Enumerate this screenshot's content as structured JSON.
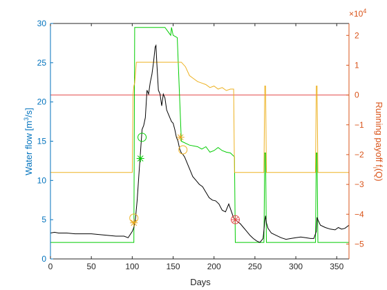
{
  "chart_data": {
    "type": "line",
    "xlabel": "Days",
    "ylabel_left": "Water flow [m³/s]",
    "ylabel_left_main": "Water flow [m",
    "ylabel_left_sup": "3",
    "ylabel_left_tail": "/s]",
    "ylabel_right": "Running payoff f_i(Q)",
    "ylabel_right_main": "Running payoff f",
    "ylabel_right_sub": "i",
    "ylabel_right_tail": "(Q)",
    "right_exponent_base": "×10",
    "right_exponent_power": "4",
    "xlim": [
      0,
      365
    ],
    "ylim_left": [
      0,
      30
    ],
    "ylim_right": [
      -5.5,
      2.4
    ],
    "x_ticks": [
      0,
      50,
      100,
      150,
      200,
      250,
      300,
      350
    ],
    "y_left_ticks": [
      0,
      5,
      10,
      15,
      20,
      25,
      30
    ],
    "y_right_ticks": [
      -5,
      -4,
      -3,
      -2,
      -1,
      0,
      1,
      2
    ],
    "grid": false,
    "colors": {
      "water_flow": "#000000",
      "payoff": "#edb120",
      "green": "#00cc00",
      "red_line": "#e24a4a",
      "left_axis": "#0072bd",
      "right_axis": "#d95319",
      "circle_marker": "#77ac30",
      "star_marker": "#e8a317"
    },
    "series": [
      {
        "axis": "left",
        "color": "#000000",
        "x": [
          0,
          5,
          10,
          20,
          30,
          40,
          50,
          60,
          70,
          80,
          90,
          95,
          100,
          102,
          104,
          106,
          108,
          110,
          112,
          114,
          116,
          118,
          120,
          122,
          124,
          126,
          128,
          129,
          130,
          132,
          134,
          136,
          138,
          140,
          142,
          144,
          146,
          148,
          150,
          152,
          154,
          156,
          158,
          160,
          162,
          164,
          166,
          168,
          170,
          174,
          178,
          182,
          186,
          190,
          194,
          198,
          202,
          206,
          210,
          214,
          218,
          222,
          224,
          226,
          228,
          232,
          236,
          240,
          244,
          248,
          252,
          256,
          260,
          262,
          263,
          264,
          266,
          270,
          276,
          282,
          288,
          294,
          300,
          306,
          312,
          318,
          322,
          325,
          326,
          327,
          330,
          336,
          342,
          348,
          352,
          356,
          360,
          365
        ],
        "values": [
          3.3,
          3.4,
          3.3,
          3.3,
          3.2,
          3.2,
          3.2,
          3.1,
          3.0,
          2.9,
          2.9,
          2.7,
          3.5,
          4.0,
          5.2,
          7.5,
          10.5,
          13.5,
          16.5,
          17.0,
          18.0,
          21.5,
          21.0,
          22.5,
          23.5,
          25.0,
          27.0,
          27.2,
          25.0,
          21.5,
          21.0,
          19.5,
          21.0,
          20.5,
          19.0,
          18.5,
          18.0,
          17.5,
          17.3,
          16.5,
          15.5,
          15.0,
          14.0,
          13.5,
          13.3,
          13.0,
          12.5,
          12.0,
          11.5,
          10.5,
          10.0,
          9.5,
          9.2,
          8.5,
          7.8,
          7.5,
          7.4,
          7.0,
          6.2,
          6.0,
          7.0,
          5.8,
          5.2,
          5.0,
          4.8,
          4.5,
          4.0,
          3.5,
          3.0,
          2.6,
          2.3,
          2.1,
          2.6,
          4.8,
          5.5,
          4.6,
          3.9,
          3.3,
          3.0,
          2.7,
          2.5,
          2.6,
          2.7,
          2.8,
          2.7,
          2.6,
          2.6,
          3.5,
          5.3,
          5.0,
          4.3,
          4.0,
          3.8,
          3.7,
          4.0,
          3.8,
          3.9,
          4.3
        ]
      },
      {
        "axis": "left",
        "color": "#00cc00",
        "x": [
          0,
          102,
          103,
          118,
          130,
          140,
          147,
          148,
          150,
          155,
          160,
          170,
          180,
          185,
          190,
          195,
          200,
          205,
          210,
          215,
          220,
          225,
          226,
          261,
          262,
          263,
          264,
          265,
          324,
          325,
          326,
          327,
          328,
          365
        ],
        "values": [
          2.1,
          2.1,
          29.5,
          29.5,
          29.5,
          29.5,
          28.5,
          29.5,
          28.5,
          28.2,
          15.0,
          14.5,
          14.3,
          14.0,
          14.3,
          13.6,
          13.8,
          14.2,
          13.8,
          13.6,
          13.5,
          13.0,
          2.1,
          2.1,
          13.5,
          13.5,
          2.1,
          2.1,
          2.1,
          13.5,
          13.5,
          2.1,
          2.1,
          2.1
        ]
      },
      {
        "axis": "right",
        "color": "#edb120",
        "x": [
          0,
          100,
          101,
          102,
          103,
          105,
          110,
          160,
          165,
          170,
          175,
          180,
          185,
          190,
          195,
          200,
          205,
          210,
          215,
          220,
          224,
          225,
          261,
          262,
          263,
          264,
          265,
          324,
          325,
          326,
          327,
          328,
          365
        ],
        "values": [
          -2.6,
          -2.6,
          0.0,
          0.3,
          0.4,
          1.1,
          1.1,
          1.1,
          0.95,
          0.65,
          0.55,
          0.45,
          0.4,
          0.35,
          0.25,
          0.3,
          0.2,
          0.25,
          0.15,
          0.2,
          0.2,
          -2.6,
          -2.6,
          0.3,
          0.3,
          -2.6,
          -2.6,
          -2.6,
          0.3,
          0.3,
          -2.6,
          -2.6,
          -2.6
        ]
      },
      {
        "axis": "right",
        "color": "#e24a4a",
        "x": [
          0,
          365
        ],
        "values": [
          0,
          0
        ]
      }
    ],
    "markers": [
      {
        "type": "circle",
        "x": 112,
        "y": 15.5,
        "color": "#00cc00"
      },
      {
        "type": "circle",
        "x": 102,
        "y": 5.2,
        "color": "#edb120"
      },
      {
        "type": "circle",
        "x": 162,
        "y": 13.9,
        "color": "#edb120"
      },
      {
        "type": "circle",
        "x": 226,
        "y": 5.0,
        "color": "#e24a4a"
      },
      {
        "type": "star",
        "x": 110,
        "y": 12.8,
        "color": "#00cc00"
      },
      {
        "type": "star",
        "x": 102,
        "y": 4.6,
        "color": "#e8a317"
      },
      {
        "type": "star",
        "x": 159,
        "y": 15.5,
        "color": "#e8a317"
      },
      {
        "type": "star",
        "x": 226,
        "y": 5.0,
        "color": "#e24a4a"
      }
    ]
  }
}
